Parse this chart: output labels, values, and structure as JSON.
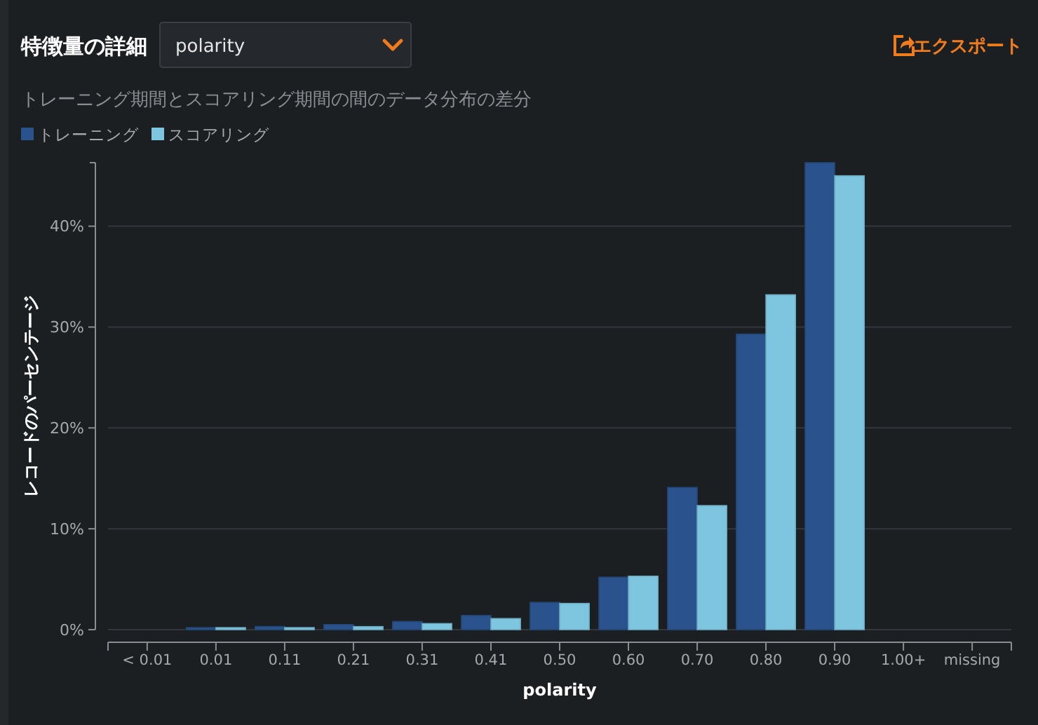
{
  "chart_data": {
    "type": "bar",
    "title": "特徴量の詳細",
    "subtitle": "トレーニング期間とスコアリング期間の間のデータ分布の差分",
    "xlabel": "polarity",
    "ylabel": "レコードのパーセンテージ",
    "annotations": [
      "polarity",
      "エクスポート"
    ],
    "categories": [
      "< 0.01",
      "0.01",
      "0.11",
      "0.21",
      "0.31",
      "0.41",
      "0.50",
      "0.60",
      "0.70",
      "0.80",
      "0.90",
      "1.00+",
      "missing"
    ],
    "series": [
      {
        "name": "トレーニング",
        "color": "#2a528c",
        "values": [
          0,
          0.2,
          0.3,
          0.5,
          0.8,
          1.4,
          2.7,
          5.2,
          14.1,
          29.3,
          46.3,
          0,
          0
        ]
      },
      {
        "name": "スコアリング",
        "color": "#7ec6e0",
        "values": [
          0,
          0.2,
          0.2,
          0.3,
          0.6,
          1.1,
          2.6,
          5.3,
          12.3,
          33.2,
          45.0,
          0,
          0
        ]
      }
    ],
    "ylim": [
      0,
      46.3
    ],
    "yticks": [
      {
        "value": 0,
        "label": "0%"
      },
      {
        "value": 10,
        "label": "10%"
      },
      {
        "value": 20,
        "label": "20%"
      },
      {
        "value": 30,
        "label": "30%"
      },
      {
        "value": 40,
        "label": "40%"
      }
    ],
    "grid": "y",
    "legend": "top left"
  }
}
